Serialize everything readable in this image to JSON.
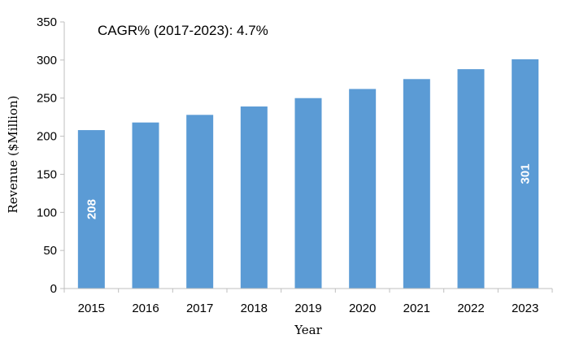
{
  "chart_data": {
    "type": "bar",
    "categories": [
      "2015",
      "2016",
      "2017",
      "2018",
      "2019",
      "2020",
      "2021",
      "2022",
      "2023"
    ],
    "values": [
      208,
      218,
      228,
      239,
      250,
      262,
      275,
      288,
      301
    ],
    "data_labels": [
      {
        "category": "2015",
        "text": "208"
      },
      {
        "category": "2023",
        "text": "301"
      }
    ],
    "annotation": "CAGR% (2017-2023):  4.7%",
    "xlabel": "Year",
    "ylabel": "Revenue ($Million)",
    "ylim": [
      0,
      350
    ],
    "yticks": [
      "0",
      "50",
      "100",
      "150",
      "200",
      "250",
      "300",
      "350"
    ],
    "grid": false,
    "legend": "none",
    "bar_color": "#5b9bd5",
    "axis_color": "#bfbfbf"
  }
}
